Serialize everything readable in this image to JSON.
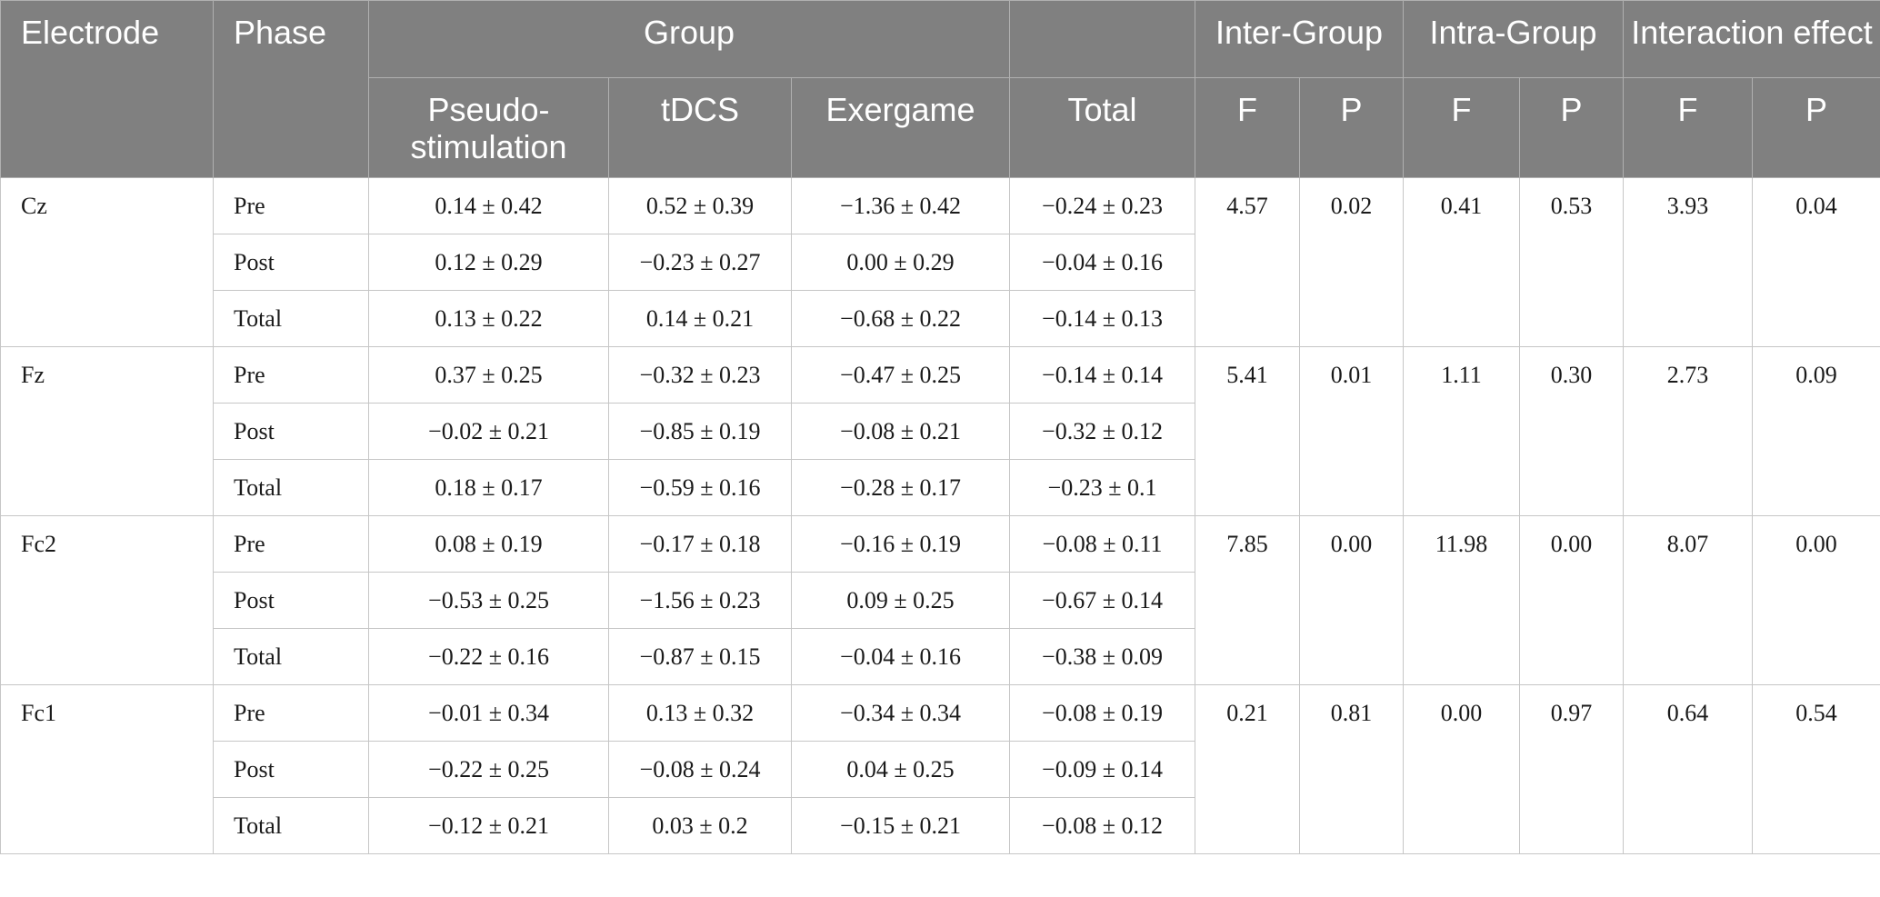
{
  "header": {
    "electrode": "Electrode",
    "phase": "Phase",
    "group": "Group",
    "inter_group": "Inter-Group",
    "intra_group": "Intra-Group",
    "interaction": "Interaction effect",
    "sub": {
      "pseudo": "Pseudo-stimulation",
      "tdcs": "tDCS",
      "exergame": "Exergame",
      "total": "Total",
      "f1": "F",
      "p1": "P",
      "f2": "F",
      "p2": "P",
      "f3": "F",
      "p3": "P"
    }
  },
  "electrodes": [
    {
      "name": "Cz",
      "rows": [
        {
          "phase": "Pre",
          "pseudo": "0.14 ± 0.42",
          "tdcs": "0.52 ± 0.39",
          "exergame": "−1.36 ± 0.42",
          "total": "−0.24 ± 0.23"
        },
        {
          "phase": "Post",
          "pseudo": "0.12 ± 0.29",
          "tdcs": "−0.23 ± 0.27",
          "exergame": "0.00 ± 0.29",
          "total": "−0.04 ± 0.16"
        },
        {
          "phase": "Total",
          "pseudo": "0.13 ± 0.22",
          "tdcs": "0.14 ± 0.21",
          "exergame": "−0.68 ± 0.22",
          "total": "−0.14 ± 0.13"
        }
      ],
      "inter_f": "4.57",
      "inter_p": "0.02",
      "intra_f": "0.41",
      "intra_p": "0.53",
      "inter_eff_f": "3.93",
      "inter_eff_p": "0.04"
    },
    {
      "name": "Fz",
      "rows": [
        {
          "phase": "Pre",
          "pseudo": "0.37 ± 0.25",
          "tdcs": "−0.32 ± 0.23",
          "exergame": "−0.47 ± 0.25",
          "total": "−0.14 ± 0.14"
        },
        {
          "phase": "Post",
          "pseudo": "−0.02 ± 0.21",
          "tdcs": "−0.85 ± 0.19",
          "exergame": "−0.08 ± 0.21",
          "total": "−0.32 ± 0.12"
        },
        {
          "phase": "Total",
          "pseudo": "0.18 ± 0.17",
          "tdcs": "−0.59 ± 0.16",
          "exergame": "−0.28 ± 0.17",
          "total": "−0.23 ± 0.1"
        }
      ],
      "inter_f": "5.41",
      "inter_p": "0.01",
      "intra_f": "1.11",
      "intra_p": "0.30",
      "inter_eff_f": "2.73",
      "inter_eff_p": "0.09"
    },
    {
      "name": "Fc2",
      "rows": [
        {
          "phase": "Pre",
          "pseudo": "0.08 ± 0.19",
          "tdcs": "−0.17 ± 0.18",
          "exergame": "−0.16 ± 0.19",
          "total": "−0.08 ± 0.11"
        },
        {
          "phase": "Post",
          "pseudo": "−0.53 ± 0.25",
          "tdcs": "−1.56 ± 0.23",
          "exergame": "0.09 ± 0.25",
          "total": "−0.67 ± 0.14"
        },
        {
          "phase": "Total",
          "pseudo": "−0.22 ± 0.16",
          "tdcs": "−0.87 ± 0.15",
          "exergame": "−0.04 ± 0.16",
          "total": "−0.38 ± 0.09"
        }
      ],
      "inter_f": "7.85",
      "inter_p": "0.00",
      "intra_f": "11.98",
      "intra_p": "0.00",
      "inter_eff_f": "8.07",
      "inter_eff_p": "0.00"
    },
    {
      "name": "Fc1",
      "rows": [
        {
          "phase": "Pre",
          "pseudo": "−0.01 ± 0.34",
          "tdcs": "0.13 ± 0.32",
          "exergame": "−0.34 ± 0.34",
          "total": "−0.08 ± 0.19"
        },
        {
          "phase": "Post",
          "pseudo": "−0.22 ± 0.25",
          "tdcs": "−0.08 ± 0.24",
          "exergame": "0.04 ± 0.25",
          "total": "−0.09 ± 0.14"
        },
        {
          "phase": "Total",
          "pseudo": "−0.12 ± 0.21",
          "tdcs": "0.03 ± 0.2",
          "exergame": "−0.15 ± 0.21",
          "total": "−0.08 ± 0.12"
        }
      ],
      "inter_f": "0.21",
      "inter_p": "0.81",
      "intra_f": "0.00",
      "intra_p": "0.97",
      "inter_eff_f": "0.64",
      "inter_eff_p": "0.54"
    }
  ]
}
